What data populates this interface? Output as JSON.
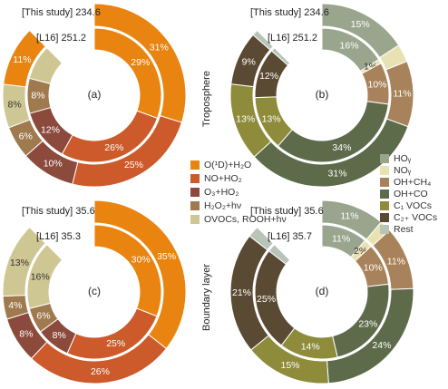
{
  "legend_left": [
    {
      "label": "O(¹D)+H₂O",
      "color": "#e8840f"
    },
    {
      "label": "NO+HO₂",
      "color": "#cc5a2a"
    },
    {
      "label": "O₃+HO₂",
      "color": "#8b4a3c"
    },
    {
      "label": "H₂O₂+hν",
      "color": "#a07a4f"
    },
    {
      "label": "OVOCs, ROOH+hν",
      "color": "#cfc793"
    }
  ],
  "legend_right": [
    {
      "label": "HOᵧ",
      "color": "#9aa58e"
    },
    {
      "label": "NOᵧ",
      "color": "#e8e2b2"
    },
    {
      "label": "OH+CH₄",
      "color": "#a8825a"
    },
    {
      "label": "OH+CO",
      "color": "#5d6b4a"
    },
    {
      "label": "C₁ VOCs",
      "color": "#8e8b3a"
    },
    {
      "label": "C₂₊ VOCs",
      "color": "#5a4a33"
    },
    {
      "label": "Rest",
      "color": "#b8c4b8"
    }
  ],
  "side_titles": [
    "Troposphere",
    "Boundary layer"
  ],
  "chart_data": [
    {
      "type": "pie",
      "panel": "(a)",
      "ring_outer_label": "[This study] 234.6",
      "ring_inner_label": "[L16] 251.2",
      "outer": {
        "values": [
          31,
          25,
          10,
          6,
          8,
          11
        ],
        "labels": [
          "31%",
          "25%",
          "10%",
          "6%",
          "8%",
          "11%"
        ]
      },
      "inner": {
        "values": [
          29,
          26,
          12,
          8,
          8
        ],
        "labels": [
          "29%",
          "26%",
          "12%",
          "8%",
          ""
        ]
      }
    },
    {
      "type": "pie",
      "panel": "(b)",
      "ring_outer_label": "[This study] 234.6",
      "ring_inner_label": "[L16] 251.2",
      "outer": {
        "values": [
          15,
          3,
          11,
          31,
          13,
          9,
          1
        ],
        "labels": [
          "15%",
          "",
          "11%",
          "31%",
          "13%",
          "9%",
          ""
        ]
      },
      "inner": {
        "values": [
          16,
          1,
          10,
          34,
          13,
          12,
          1
        ],
        "labels": [
          "16%",
          "1%",
          "10%",
          "34%",
          "13%",
          "12%",
          ""
        ]
      }
    },
    {
      "type": "pie",
      "panel": "(c)",
      "ring_outer_label": "[This study] 35.6",
      "ring_inner_label": "[L16] 35.3",
      "outer": {
        "values": [
          35,
          26,
          8,
          4,
          13
        ],
        "labels": [
          "35%",
          "26%",
          "8%",
          "4%",
          "13%"
        ]
      },
      "inner": {
        "values": [
          30,
          25,
          8,
          6,
          16
        ],
        "labels": [
          "30%",
          "25%",
          "8%",
          "6%",
          "16%"
        ]
      }
    },
    {
      "type": "pie",
      "panel": "(d)",
      "ring_outer_label": "[This study] 35.6",
      "ring_inner_label": "[L16] 35.7",
      "outer": {
        "values": [
          11,
          2,
          11,
          24,
          15,
          21,
          2
        ],
        "labels": [
          "11%",
          "",
          "11%",
          "24%",
          "15%",
          "21%",
          ""
        ]
      },
      "inner": {
        "values": [
          11,
          2,
          10,
          23,
          14,
          25,
          2
        ],
        "labels": [
          "11%",
          "2%",
          "10%",
          "23%",
          "14%",
          "25%",
          ""
        ]
      }
    }
  ]
}
